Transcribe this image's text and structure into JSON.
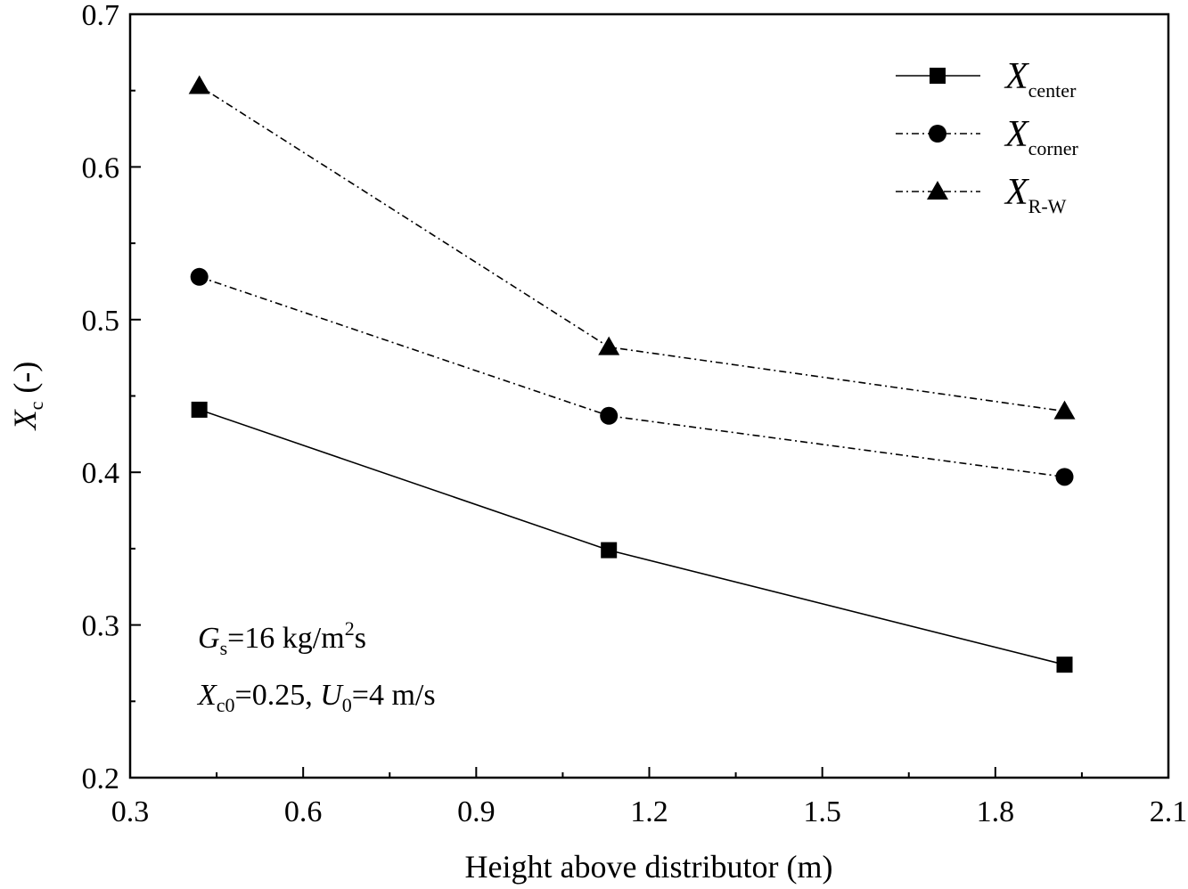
{
  "chart_data": {
    "type": "line",
    "xlabel": "Height above distributor (m)",
    "ylabel_main": "X",
    "ylabel_sub": "c",
    "ylabel_suffix": " (-)",
    "xlim": [
      0.3,
      2.1
    ],
    "ylim": [
      0.2,
      0.7
    ],
    "xticks": [
      "0.3",
      "0.6",
      "0.9",
      "1.2",
      "1.5",
      "1.8",
      "2.1"
    ],
    "yticks": [
      "0.2",
      "0.3",
      "0.4",
      "0.5",
      "0.6",
      "0.7"
    ],
    "x": [
      0.42,
      1.13,
      1.92
    ],
    "legend_position": "top-right",
    "grid": false,
    "series": [
      {
        "name_main": "X",
        "name_sub": "center",
        "marker": "square",
        "line": "solid",
        "values": [
          0.441,
          0.349,
          0.274
        ]
      },
      {
        "name_main": "X",
        "name_sub": "corner",
        "marker": "circle",
        "line": "dashdot",
        "values": [
          0.528,
          0.437,
          0.397
        ]
      },
      {
        "name_main": "X",
        "name_sub": "R-W",
        "marker": "triangle",
        "line": "dashdot",
        "values": [
          0.653,
          0.482,
          0.44
        ]
      }
    ],
    "annotations": {
      "line1": {
        "a": "G",
        "a_sub": "s",
        "b": "=16 kg/m",
        "b_sup": "2",
        "c": "s"
      },
      "line2": {
        "a": "X",
        "a_sub": "c0",
        "b": "=0.25, ",
        "c": "U",
        "c_sub": "0",
        "d": "=4 m/s"
      }
    }
  }
}
